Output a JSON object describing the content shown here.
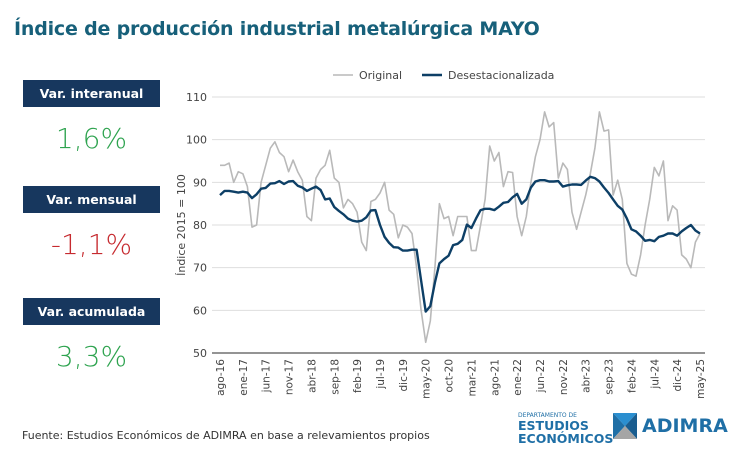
{
  "title": "Índice de producción industrial metalúrgica MAYO",
  "kpis": [
    {
      "label": "Var. interanual",
      "value": "1,6%",
      "color": "#2ea34f"
    },
    {
      "label": "Var. mensual",
      "value": "-1,1%",
      "color": "#c62a2f"
    },
    {
      "label": "Var. acumulada",
      "value": "3,3%",
      "color": "#2ea34f"
    }
  ],
  "source": "Fuente: Estudios Económicos de ADIMRA en base a relevamientos propios",
  "logos": {
    "dept_small": "DEPARTAMENTO DE",
    "dept_line1": "ESTUDIOS",
    "dept_line2": "ECONÓMICOS",
    "adimra": "ADIMRA"
  },
  "chart_data": {
    "type": "line",
    "ylabel": "Índice 2015 = 100",
    "ylim": [
      50,
      110
    ],
    "yticks": [
      50,
      60,
      70,
      80,
      90,
      100,
      110
    ],
    "grid": true,
    "legend_position": "top",
    "xtick_labels": [
      "ago-16",
      "ene-17",
      "jun-17",
      "nov-17",
      "abr-18",
      "sep-18",
      "feb-19",
      "jul-19",
      "dic-19",
      "may-20",
      "oct-20",
      "mar-21",
      "ago-21",
      "ene-22",
      "jun-22",
      "nov-22",
      "abr-23",
      "sep-23",
      "feb-24",
      "jul-24",
      "dic-24",
      "may-25"
    ],
    "xtick_step": 5,
    "series": [
      {
        "name": "Original",
        "color": "#b9b9b9",
        "values": [
          94,
          94,
          94.5,
          90,
          92.5,
          92,
          89,
          79.5,
          80,
          90,
          94,
          98,
          99.5,
          97,
          96,
          92.5,
          95.2,
          92.5,
          90.5,
          82,
          81,
          91,
          93,
          94,
          97.5,
          91,
          90,
          84,
          86,
          85,
          83,
          76,
          74,
          85.5,
          86,
          87.5,
          90,
          83.5,
          82.5,
          77,
          80,
          79.5,
          78,
          70,
          60,
          52.5,
          57.5,
          70,
          85,
          81.5,
          82,
          77.5,
          82,
          82,
          82,
          74,
          74,
          80,
          86,
          98.5,
          95,
          97,
          89,
          92.5,
          92.3,
          82,
          77.5,
          82,
          90,
          96,
          100,
          106.5,
          103,
          104,
          91,
          94.5,
          93,
          83,
          79,
          83,
          87,
          92,
          98,
          106.5,
          102,
          102.3,
          87,
          90.5,
          86,
          71,
          68.5,
          68,
          73,
          80,
          86,
          93.5,
          91.5,
          95,
          81,
          84.5,
          83.5,
          73,
          72,
          70,
          76,
          78
        ]
      },
      {
        "name": "Desestacionalizada",
        "color": "#0d3f66",
        "values": [
          87,
          88,
          88,
          87.8,
          87.6,
          87.8,
          87.6,
          86.3,
          87.2,
          88.5,
          88.7,
          89.7,
          89.8,
          90.3,
          89.6,
          90.2,
          90.3,
          89.2,
          88.8,
          88,
          88.5,
          89,
          88.2,
          86,
          86.2,
          84.2,
          83.3,
          82.5,
          81.5,
          81,
          80.8,
          81,
          81.8,
          83.4,
          83.5,
          80,
          77.2,
          75.8,
          74.8,
          74.7,
          74,
          74,
          74.2,
          74.2,
          67,
          59.7,
          61,
          66.5,
          71,
          72,
          72.8,
          75.3,
          75.6,
          76.5,
          80.1,
          79.3,
          81.5,
          83.5,
          83.8,
          83.8,
          83.5,
          84.3,
          85.2,
          85.4,
          86.5,
          87.3,
          85,
          86,
          88.8,
          90.2,
          90.5,
          90.5,
          90.2,
          90.2,
          90.3,
          89,
          89.3,
          89.5,
          89.5,
          89.4,
          90.4,
          91.3,
          91,
          90.2,
          88.8,
          87.5,
          86,
          84.5,
          83.6,
          81.5,
          79,
          78.5,
          77.5,
          76.3,
          76.5,
          76.2,
          77.2,
          77.5,
          78,
          78,
          77.5,
          78.5,
          79.3,
          80,
          78.7,
          78
        ]
      }
    ]
  }
}
